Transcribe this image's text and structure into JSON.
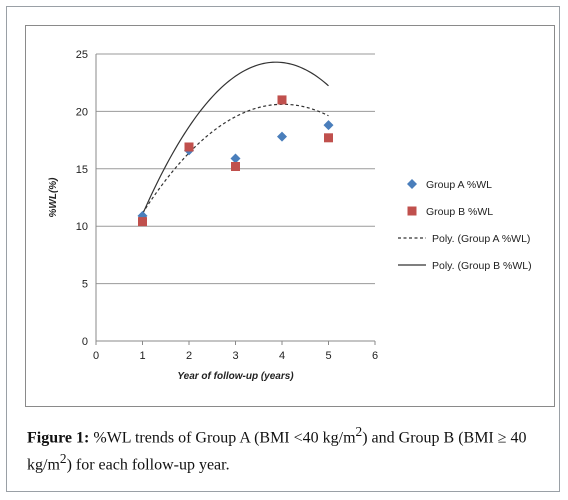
{
  "caption": {
    "label": "Figure 1:",
    "text_1": " %WL trends of Group A (BMI <40 kg/m",
    "sup_1": "2",
    "text_2": ") and Group B (BMI ≥ 40 kg/m",
    "sup_2": "2",
    "text_3": ") for each follow-up year."
  },
  "chart_data": {
    "type": "scatter",
    "title": "",
    "xlabel": "Year of follow-up (years)",
    "ylabel": "%WL(%)",
    "xlim": [
      0,
      6
    ],
    "ylim": [
      0,
      25
    ],
    "x_ticks": [
      0,
      1,
      2,
      3,
      4,
      5,
      6
    ],
    "y_ticks": [
      0,
      5,
      10,
      15,
      20,
      25
    ],
    "grid": "horizontal",
    "legend_position": "right",
    "series": [
      {
        "name": "Group A %WL",
        "marker": "diamond",
        "color": "#4a7ebb",
        "x": [
          1,
          2,
          3,
          4,
          5
        ],
        "y": [
          10.9,
          16.6,
          15.9,
          17.8,
          18.8
        ]
      },
      {
        "name": "Group B %WL",
        "marker": "square",
        "color": "#c0504d",
        "x": [
          1,
          2,
          3,
          4,
          5
        ],
        "y": [
          10.4,
          16.9,
          15.2,
          21.0,
          17.7
        ]
      }
    ],
    "trendlines": [
      {
        "name": "Poly. (Group A %WL)",
        "style": "dashed",
        "color": "#333333",
        "coeffs": [
          3.82,
          8.36,
          -1.04
        ]
      },
      {
        "name": "Poly. (Group B %WL)",
        "style": "solid",
        "color": "#333333",
        "coeffs": [
          0.18,
          12.46,
          -1.61
        ]
      }
    ]
  }
}
